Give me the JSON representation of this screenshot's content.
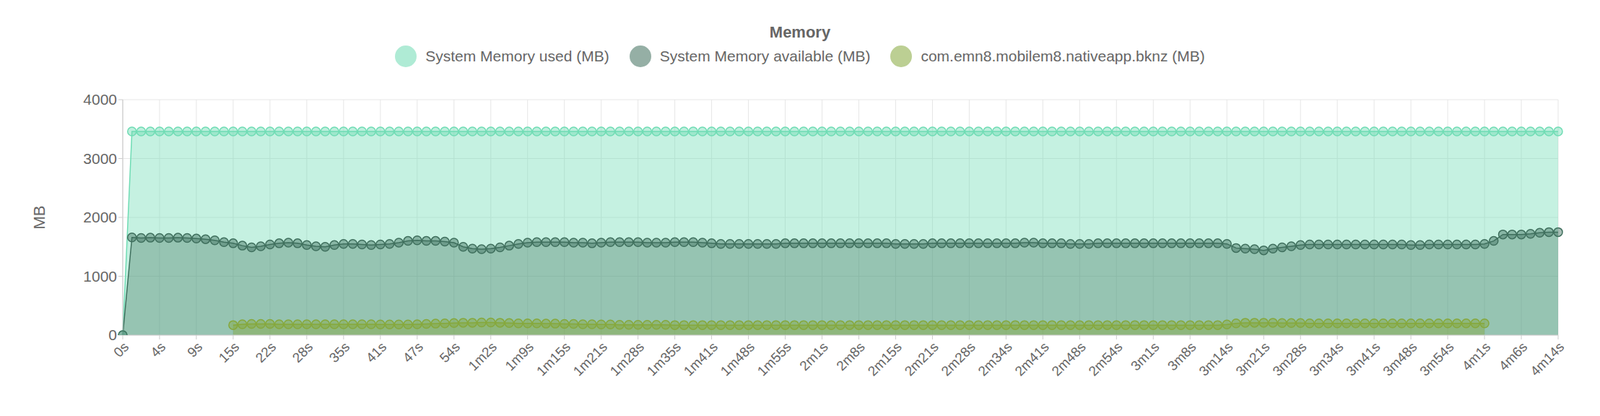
{
  "chart_data": {
    "type": "area",
    "title": "Memory",
    "y_label": "MB",
    "legend": "top",
    "grid": true,
    "marker": "circle",
    "ylim": [
      0,
      4000
    ],
    "yticks": [
      0,
      1000,
      2000,
      3000,
      4000
    ],
    "categories": [
      "0s",
      null,
      null,
      null,
      "4s",
      null,
      null,
      null,
      "9s",
      null,
      null,
      null,
      "15s",
      null,
      null,
      null,
      "22s",
      null,
      null,
      null,
      "28s",
      null,
      null,
      null,
      "35s",
      null,
      null,
      null,
      "41s",
      null,
      null,
      null,
      "47s",
      null,
      null,
      null,
      "54s",
      null,
      null,
      null,
      "1m2s",
      null,
      null,
      null,
      "1m9s",
      null,
      null,
      null,
      "1m15s",
      null,
      null,
      null,
      "1m21s",
      null,
      null,
      null,
      "1m28s",
      null,
      null,
      null,
      "1m35s",
      null,
      null,
      null,
      "1m41s",
      null,
      null,
      null,
      "1m48s",
      null,
      null,
      null,
      "1m55s",
      null,
      null,
      null,
      "2m1s",
      null,
      null,
      null,
      "2m8s",
      null,
      null,
      null,
      "2m15s",
      null,
      null,
      null,
      "2m21s",
      null,
      null,
      null,
      "2m28s",
      null,
      null,
      null,
      "2m34s",
      null,
      null,
      null,
      "2m41s",
      null,
      null,
      null,
      "2m48s",
      null,
      null,
      null,
      "2m54s",
      null,
      null,
      null,
      "3m1s",
      null,
      null,
      null,
      "3m8s",
      null,
      null,
      null,
      "3m14s",
      null,
      null,
      null,
      "3m21s",
      null,
      null,
      null,
      "3m28s",
      null,
      null,
      null,
      "3m34s",
      null,
      null,
      null,
      "3m41s",
      null,
      null,
      null,
      "3m48s",
      null,
      null,
      null,
      "3m54s",
      null,
      null,
      null,
      "4m1s",
      null,
      null,
      null,
      "4m6s",
      null,
      null,
      null,
      "4m14s"
    ],
    "series": [
      {
        "name": "System Memory used (MB)",
        "color": "#6fdcb4",
        "values": [
          0,
          3460,
          3460,
          3460,
          3460,
          3460,
          3460,
          3460,
          3460,
          3460,
          3460,
          3460,
          3460,
          3460,
          3460,
          3460,
          3460,
          3460,
          3460,
          3460,
          3460,
          3460,
          3460,
          3460,
          3460,
          3460,
          3460,
          3460,
          3460,
          3460,
          3460,
          3460,
          3460,
          3460,
          3460,
          3460,
          3460,
          3460,
          3460,
          3460,
          3460,
          3460,
          3460,
          3460,
          3460,
          3460,
          3460,
          3460,
          3460,
          3460,
          3460,
          3460,
          3460,
          3460,
          3460,
          3460,
          3460,
          3460,
          3460,
          3460,
          3460,
          3460,
          3460,
          3460,
          3460,
          3460,
          3460,
          3460,
          3460,
          3460,
          3460,
          3460,
          3460,
          3460,
          3460,
          3460,
          3460,
          3460,
          3460,
          3460,
          3460,
          3460,
          3460,
          3460,
          3460,
          3460,
          3460,
          3460,
          3460,
          3460,
          3460,
          3460,
          3460,
          3460,
          3460,
          3460,
          3460,
          3460,
          3460,
          3460,
          3460,
          3460,
          3460,
          3460,
          3460,
          3460,
          3460,
          3460,
          3460,
          3460,
          3460,
          3460,
          3460,
          3460,
          3460,
          3460,
          3460,
          3460,
          3460,
          3460,
          3460,
          3460,
          3460,
          3460,
          3460,
          3460,
          3460,
          3460,
          3460,
          3460,
          3460,
          3460,
          3460,
          3460,
          3460,
          3460,
          3460,
          3460,
          3460,
          3460,
          3460,
          3460,
          3460,
          3460,
          3460,
          3460,
          3460,
          3460,
          3460,
          3460,
          3460,
          3460,
          3460,
          3460,
          3460,
          3460,
          3460
        ]
      },
      {
        "name": "System Memory available (MB)",
        "color": "#3f6f5d",
        "values": [
          0,
          1660,
          1650,
          1655,
          1650,
          1650,
          1655,
          1650,
          1640,
          1630,
          1610,
          1580,
          1560,
          1520,
          1490,
          1510,
          1540,
          1560,
          1570,
          1560,
          1530,
          1510,
          1500,
          1530,
          1550,
          1550,
          1540,
          1530,
          1540,
          1550,
          1570,
          1600,
          1610,
          1600,
          1600,
          1590,
          1570,
          1500,
          1470,
          1460,
          1470,
          1490,
          1520,
          1550,
          1570,
          1580,
          1580,
          1580,
          1580,
          1570,
          1570,
          1560,
          1570,
          1580,
          1580,
          1580,
          1580,
          1570,
          1570,
          1570,
          1580,
          1580,
          1580,
          1570,
          1560,
          1550,
          1550,
          1550,
          1550,
          1550,
          1550,
          1550,
          1560,
          1560,
          1560,
          1560,
          1560,
          1560,
          1560,
          1560,
          1560,
          1560,
          1560,
          1560,
          1550,
          1550,
          1550,
          1550,
          1560,
          1560,
          1560,
          1560,
          1560,
          1560,
          1560,
          1560,
          1560,
          1560,
          1570,
          1570,
          1560,
          1560,
          1560,
          1550,
          1550,
          1550,
          1560,
          1560,
          1560,
          1560,
          1560,
          1560,
          1560,
          1560,
          1560,
          1560,
          1560,
          1560,
          1560,
          1560,
          1550,
          1480,
          1470,
          1460,
          1440,
          1470,
          1490,
          1510,
          1530,
          1540,
          1540,
          1540,
          1540,
          1540,
          1540,
          1540,
          1540,
          1540,
          1540,
          1540,
          1530,
          1530,
          1540,
          1540,
          1540,
          1540,
          1540,
          1540,
          1550,
          1600,
          1710,
          1710,
          1710,
          1720,
          1740,
          1750,
          1750
        ]
      },
      {
        "name": "com.emn8.mobilem8.nativeapp.bknz (MB)",
        "color": "#86a83c",
        "values": [
          null,
          null,
          null,
          null,
          null,
          null,
          null,
          null,
          null,
          null,
          null,
          null,
          170,
          185,
          190,
          190,
          190,
          185,
          185,
          185,
          185,
          185,
          185,
          185,
          185,
          185,
          185,
          185,
          180,
          180,
          180,
          180,
          185,
          190,
          195,
          200,
          205,
          210,
          210,
          215,
          215,
          210,
          205,
          200,
          200,
          200,
          195,
          195,
          190,
          190,
          185,
          185,
          180,
          180,
          175,
          175,
          175,
          175,
          175,
          175,
          170,
          170,
          170,
          170,
          170,
          170,
          170,
          170,
          170,
          170,
          170,
          170,
          170,
          170,
          170,
          170,
          170,
          170,
          170,
          170,
          170,
          170,
          170,
          170,
          170,
          170,
          170,
          170,
          170,
          170,
          170,
          170,
          170,
          170,
          170,
          170,
          170,
          170,
          170,
          170,
          170,
          170,
          170,
          170,
          170,
          170,
          170,
          170,
          170,
          170,
          170,
          170,
          170,
          170,
          170,
          170,
          170,
          170,
          170,
          170,
          180,
          200,
          210,
          210,
          210,
          210,
          205,
          205,
          205,
          200,
          200,
          200,
          200,
          200,
          200,
          200,
          200,
          200,
          200,
          200,
          200,
          200,
          200,
          200,
          200,
          200,
          200,
          200,
          200,
          null,
          null,
          null,
          null,
          null,
          null,
          null,
          null
        ]
      }
    ]
  }
}
